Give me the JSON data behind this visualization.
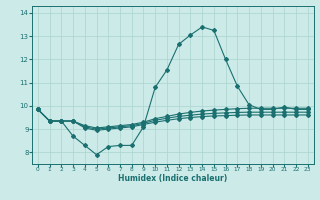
{
  "xlabel": "Humidex (Indice chaleur)",
  "bg_color": "#cceae7",
  "grid_color": "#aad4d0",
  "line_color": "#1a7070",
  "xlim": [
    -0.5,
    23.5
  ],
  "ylim": [
    7.5,
    14.3
  ],
  "xticks": [
    0,
    1,
    2,
    3,
    4,
    5,
    6,
    7,
    8,
    9,
    10,
    11,
    12,
    13,
    14,
    15,
    16,
    17,
    18,
    19,
    20,
    21,
    22,
    23
  ],
  "yticks": [
    8,
    9,
    10,
    11,
    12,
    13,
    14
  ],
  "line1_x": [
    0,
    1,
    2,
    3,
    4,
    5,
    6,
    7,
    8,
    9,
    10,
    11,
    12,
    13,
    14,
    15,
    16,
    17,
    18,
    19,
    20,
    21,
    22,
    23
  ],
  "line1_y": [
    9.85,
    9.35,
    9.35,
    8.7,
    8.3,
    7.9,
    8.25,
    8.3,
    8.3,
    9.1,
    10.8,
    11.55,
    12.65,
    13.05,
    13.4,
    13.25,
    12.0,
    10.85,
    10.05,
    9.85,
    9.85,
    9.95,
    9.85,
    9.85
  ],
  "line2_x": [
    0,
    1,
    2,
    3,
    4,
    5,
    6,
    7,
    8,
    9,
    10,
    11,
    12,
    13,
    14,
    15,
    16,
    17,
    18,
    19,
    20,
    21,
    22,
    23
  ],
  "line2_y": [
    9.85,
    9.35,
    9.35,
    9.35,
    9.15,
    9.05,
    9.1,
    9.15,
    9.2,
    9.3,
    9.45,
    9.55,
    9.65,
    9.72,
    9.78,
    9.82,
    9.85,
    9.88,
    9.9,
    9.9,
    9.9,
    9.9,
    9.9,
    9.9
  ],
  "line3_x": [
    0,
    1,
    2,
    3,
    4,
    5,
    6,
    7,
    8,
    9,
    10,
    11,
    12,
    13,
    14,
    15,
    16,
    17,
    18,
    19,
    20,
    21,
    22,
    23
  ],
  "line3_y": [
    9.85,
    9.35,
    9.35,
    9.35,
    9.1,
    9.0,
    9.05,
    9.1,
    9.15,
    9.25,
    9.38,
    9.47,
    9.55,
    9.6,
    9.65,
    9.68,
    9.7,
    9.72,
    9.73,
    9.73,
    9.73,
    9.73,
    9.73,
    9.73
  ],
  "line4_x": [
    0,
    1,
    2,
    3,
    4,
    5,
    6,
    7,
    8,
    9,
    10,
    11,
    12,
    13,
    14,
    15,
    16,
    17,
    18,
    19,
    20,
    21,
    22,
    23
  ],
  "line4_y": [
    9.85,
    9.35,
    9.35,
    9.35,
    9.05,
    8.95,
    9.0,
    9.05,
    9.1,
    9.2,
    9.3,
    9.38,
    9.45,
    9.5,
    9.54,
    9.57,
    9.58,
    9.6,
    9.61,
    9.61,
    9.61,
    9.61,
    9.61,
    9.61
  ]
}
